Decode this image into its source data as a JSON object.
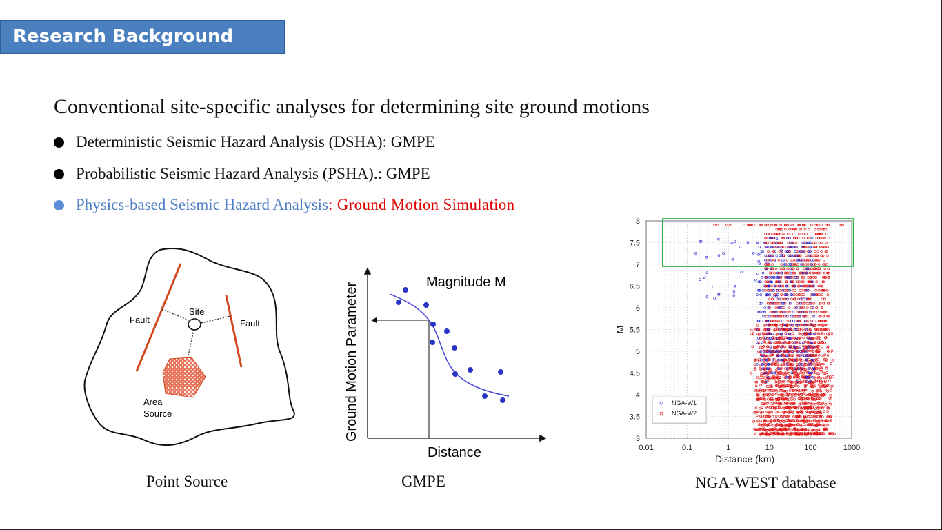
{
  "slide": {
    "title": "Research Background",
    "heading": "Conventional site-specific analyses for determining site ground motions",
    "bullets": [
      {
        "text": "Deterministic Seismic Hazard Analysis (DSHA): GMPE"
      },
      {
        "text": "Probabilistic Seismic Hazard Analysis (PSHA).: GMPE"
      },
      {
        "text_blue": "Physics-based Seismic Hazard Analysis",
        "sep": ": ",
        "text_red": "Ground Motion Simulation"
      }
    ],
    "captions": {
      "point_source": "Point Source",
      "gmpe": "GMPE",
      "nga": "NGA-WEST database"
    }
  },
  "diagram_source": {
    "fault_left": "Fault",
    "fault_right": "Fault",
    "site": "Site",
    "area_line1": "Area",
    "area_line2": "Source"
  },
  "diagram_gmpe": {
    "ylabel": "Ground Motion Parameter",
    "xlabel": "Distance",
    "curve_label": "Magnitude M"
  },
  "chart_data": {
    "type": "scatter",
    "xlabel": "Distance (km)",
    "ylabel": "M",
    "xscale": "log",
    "xlim": [
      0.01,
      1000
    ],
    "ylim": [
      3,
      8
    ],
    "x_ticks": [
      "0.01",
      "0.1",
      "1",
      "10",
      "100",
      "1000"
    ],
    "y_ticks": [
      "3",
      "3.5",
      "4",
      "4.5",
      "5",
      "5.5",
      "6",
      "6.5",
      "7",
      "7.5",
      "8"
    ],
    "grid": true,
    "legend_position": "bottom-left",
    "series": [
      {
        "name": "NGA-W1",
        "color": "#2b2bd6"
      },
      {
        "name": "NGA-W2",
        "color": "#e01818"
      }
    ],
    "highlight_box": {
      "xlim": [
        0.025,
        1100
      ],
      "ylim": [
        6.95,
        8.05
      ],
      "color": "#2fb24a"
    }
  },
  "colors": {
    "banner": "#4a7fc0",
    "fault": "#d2461e",
    "area_fill": "#e9735a"
  }
}
